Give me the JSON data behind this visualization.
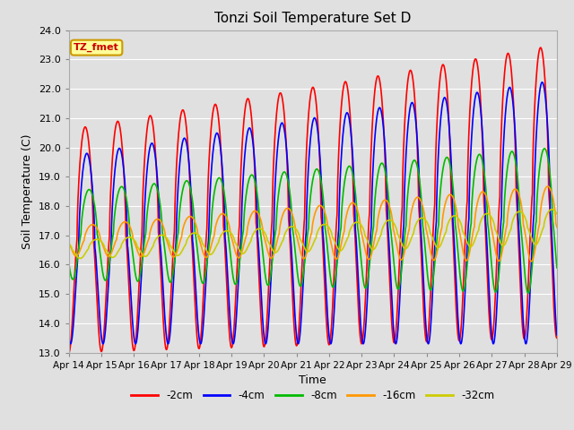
{
  "title": "Tonzi Soil Temperature Set D",
  "xlabel": "Time",
  "ylabel": "Soil Temperature (C)",
  "ylim": [
    13.0,
    24.0
  ],
  "yticks": [
    13.0,
    14.0,
    15.0,
    16.0,
    17.0,
    18.0,
    19.0,
    20.0,
    21.0,
    22.0,
    23.0,
    24.0
  ],
  "xtick_labels": [
    "Apr 14",
    "Apr 15",
    "Apr 16",
    "Apr 17",
    "Apr 18",
    "Apr 19",
    "Apr 20",
    "Apr 21",
    "Apr 22",
    "Apr 23",
    "Apr 24",
    "Apr 25",
    "Apr 26",
    "Apr 27",
    "Apr 28",
    "Apr 29"
  ],
  "series_labels": [
    "-2cm",
    "-4cm",
    "-8cm",
    "-16cm",
    "-32cm"
  ],
  "series_colors": [
    "#ff0000",
    "#0000ff",
    "#00bb00",
    "#ff9900",
    "#cccc00"
  ],
  "line_widths": [
    1.2,
    1.2,
    1.2,
    1.2,
    1.2
  ],
  "background_color": "#e0e0e0",
  "plot_bg_color": "#e0e0e0",
  "grid_color": "#ffffff",
  "annotation_text": "TZ_fmet",
  "annotation_bg": "#ffff99",
  "annotation_border": "#cc9900",
  "n_points": 1500
}
